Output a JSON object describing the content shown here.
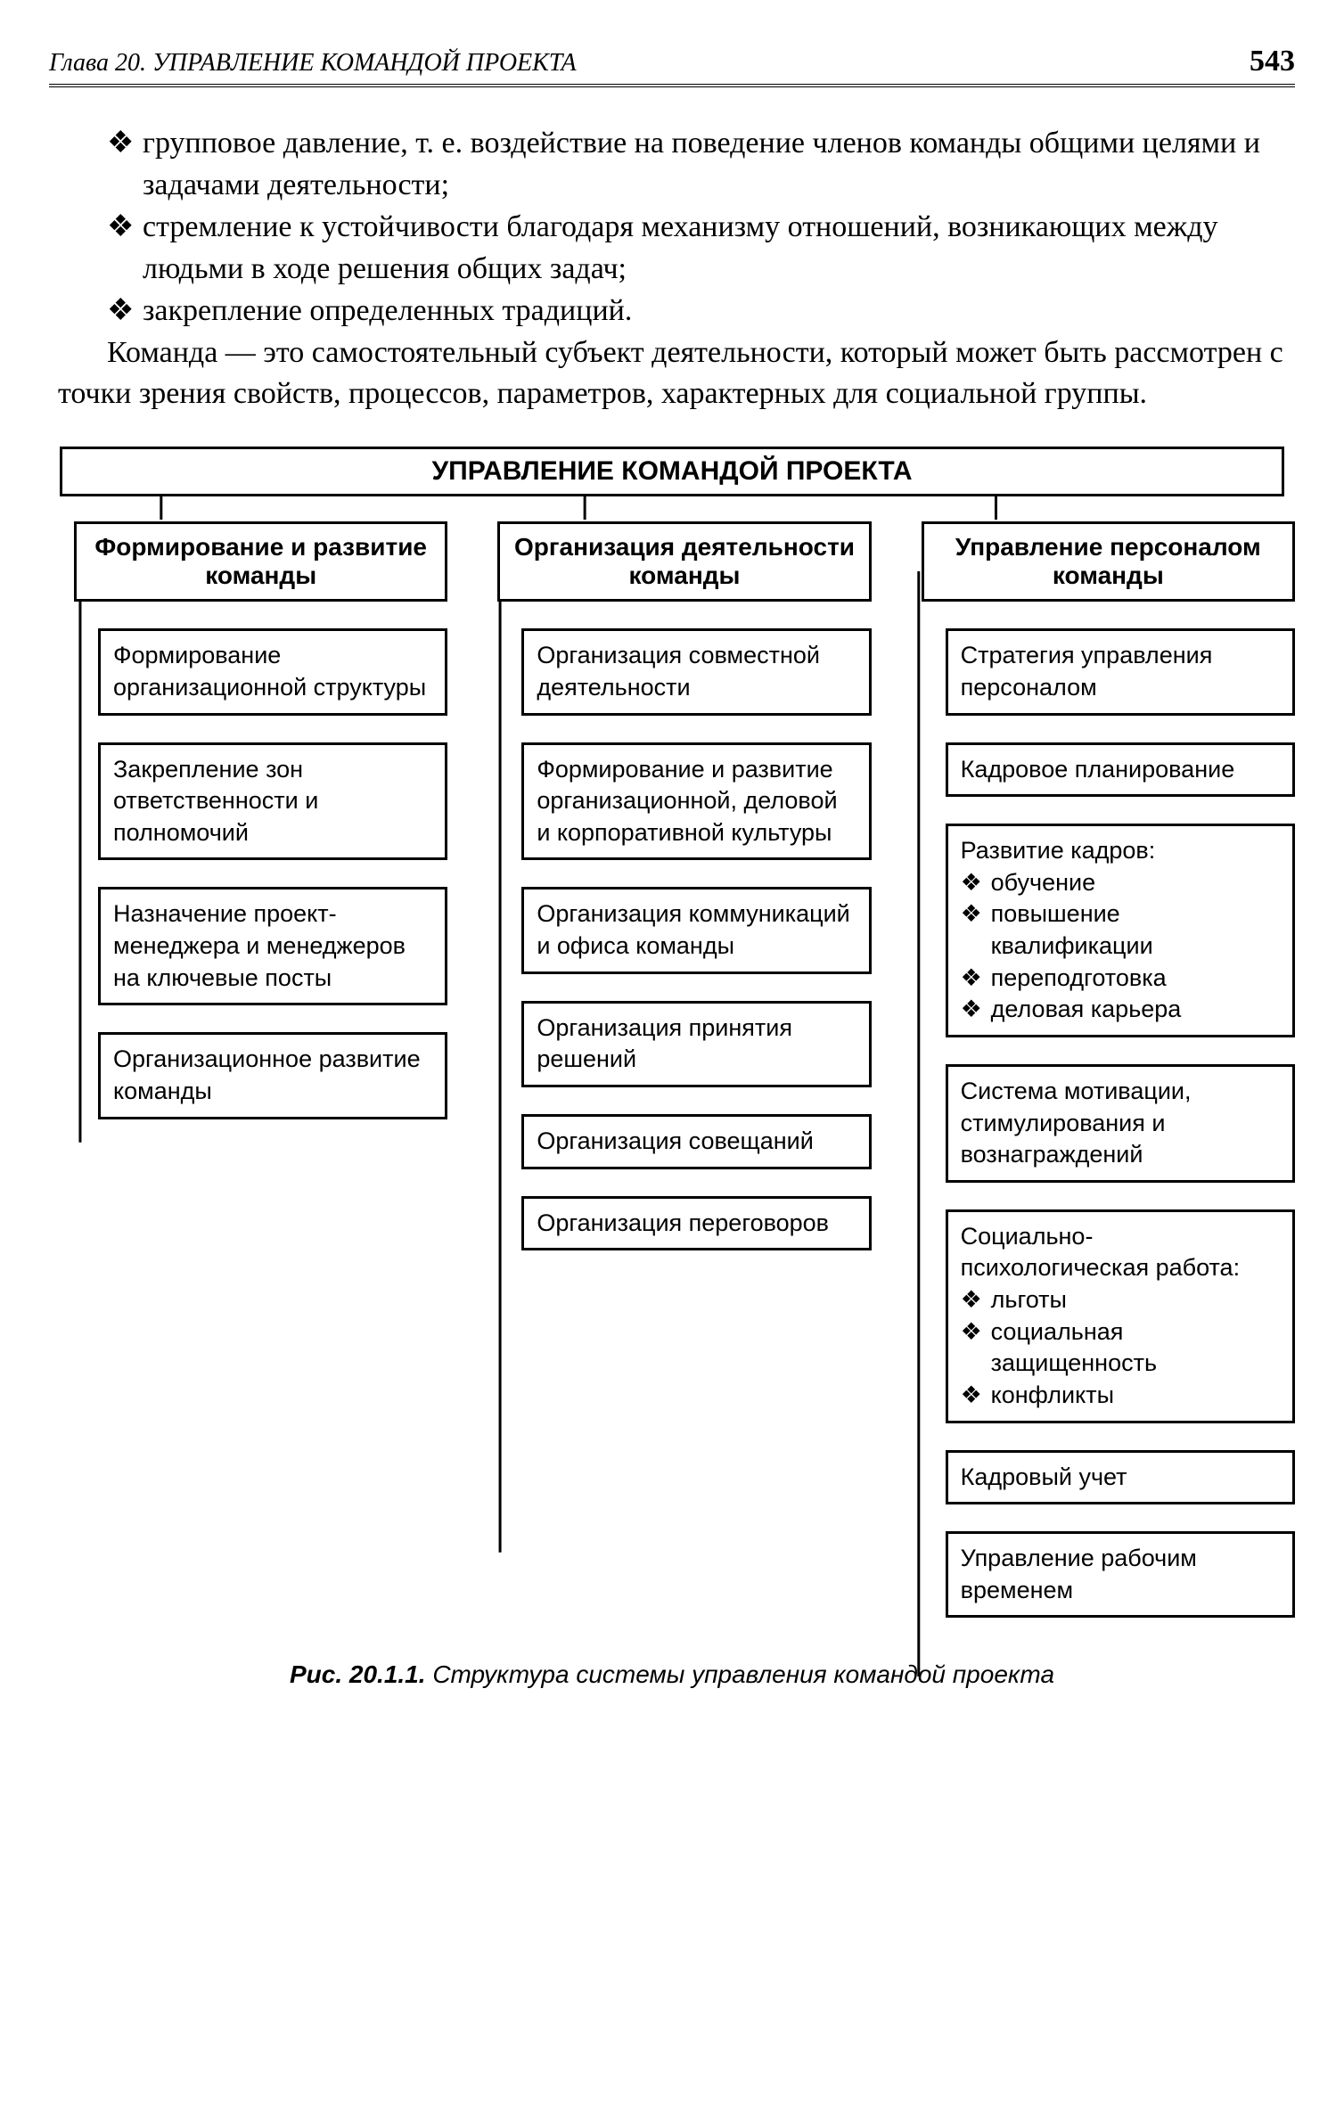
{
  "header": {
    "chapter": "Глава 20. УПРАВЛЕНИЕ КОМАНДОЙ ПРОЕКТА",
    "page": "543"
  },
  "bullets": [
    "групповое давление, т. е. воздействие на поведение членов команды общими целями и задачами деятельности;",
    "стремление к устойчивости благодаря механизму отношений, возникающих между людьми в ходе решения общих задач;",
    "закрепление определенных традиций."
  ],
  "paragraph": "Команда — это самостоятельный субъект деятельности, который может быть рассмотрен с точки зрения свойств, процессов, параметров, характерных для социальной группы.",
  "diagram": {
    "type": "tree",
    "title": "УПРАВЛЕНИЕ КОМАНДОЙ ПРОЕКТА",
    "border_color": "#000000",
    "background_color": "#ffffff",
    "border_width": 3,
    "font_family": "Arial",
    "title_fontsize": 30,
    "header_fontsize": 28,
    "item_fontsize": 27,
    "columns": [
      {
        "header": "Формирование и развитие команды",
        "items": [
          {
            "text": "Формирование организационной структуры"
          },
          {
            "text": "Закрепление зон ответственности и полномочий"
          },
          {
            "text": "Назначение проект-менеджера и менеджеров на ключевые посты"
          },
          {
            "text": "Организационное развитие команды"
          }
        ]
      },
      {
        "header": "Организация деятельности команды",
        "items": [
          {
            "text": "Организация совместной деятельности"
          },
          {
            "text": "Формирование и развитие организационной, деловой и корпоративной культуры"
          },
          {
            "text": "Организация коммуникаций и офиса команды"
          },
          {
            "text": "Организация принятия решений"
          },
          {
            "text": "Организация совещаний"
          },
          {
            "text": "Организация переговоров"
          }
        ]
      },
      {
        "header": "Управление персоналом команды",
        "items": [
          {
            "text": "Стратегия управления персоналом"
          },
          {
            "text": "Кадровое планирование"
          },
          {
            "text": "Развитие кадров:",
            "sub": [
              "обучение",
              "повышение квалификации",
              "переподготовка",
              "деловая карьера"
            ]
          },
          {
            "text": "Система мотивации, стимулирования и вознаграждений"
          },
          {
            "text": "Социально-психологическая работа:",
            "sub": [
              "льготы",
              "социальная защищенность",
              "конфликты"
            ]
          },
          {
            "text": "Кадровый учет"
          },
          {
            "text": "Управление рабочим временем"
          }
        ]
      }
    ]
  },
  "caption": {
    "label": "Рис. 20.1.1.",
    "text": "Структура системы управления командой проекта"
  }
}
